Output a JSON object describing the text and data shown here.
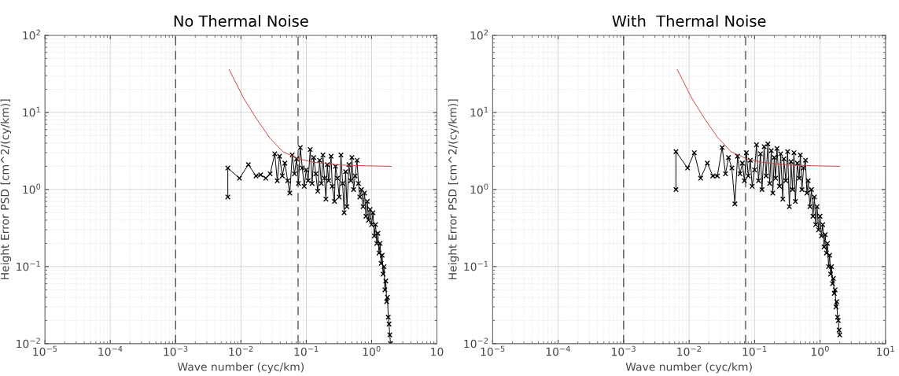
{
  "chart_data": [
    {
      "type": "line",
      "title": "No Thermal Noise",
      "xlabel": "Wave number (cyc/km)",
      "ylabel": "Height Error PSD [cm^2/(cy/km)]",
      "log": "xy",
      "grid": true,
      "xlim": [
        1e-05,
        10
      ],
      "ylim": [
        0.01,
        100
      ],
      "xticks": [
        {
          "value": 1e-05,
          "label": "10$^{−5}$"
        },
        {
          "value": 0.0001,
          "label": "10$^{−4}$"
        },
        {
          "value": 0.001,
          "label": "10$^{−3}$"
        },
        {
          "value": 0.01,
          "label": "10$^{−2}$"
        },
        {
          "value": 0.1,
          "label": "10$^{−1}$"
        },
        {
          "value": 1,
          "label": "10$^{0}$"
        },
        10
      ],
      "yticks": [
        {
          "value": 0.01,
          "label": "10$^{−2}$"
        },
        {
          "value": 0.1,
          "label": "10$^{−1}$"
        },
        {
          "value": 1,
          "label": "10$^{0}$"
        },
        {
          "value": 10,
          "label": "10$^{1}$"
        },
        {
          "value": 100,
          "label": "10$^{2}$"
        }
      ],
      "ref_lines": [
        {
          "axis": "x",
          "value": 0.001,
          "color": "#555555",
          "line_style": "dashed"
        },
        {
          "axis": "x",
          "value": 0.075,
          "color": "#555555",
          "line_style": "dashed"
        }
      ],
      "series": [
        {
          "color": "#000000",
          "marker": "cross",
          "x": [
            0.0063,
            0.0063,
            0.0095,
            0.013,
            0.017,
            0.02,
            0.024,
            0.028,
            0.033,
            0.036,
            0.039,
            0.043,
            0.047,
            0.052,
            0.056,
            0.061,
            0.066,
            0.071,
            0.076,
            0.081,
            0.087,
            0.093,
            0.1,
            0.107,
            0.115,
            0.123,
            0.13,
            0.14,
            0.15,
            0.16,
            0.17,
            0.18,
            0.19,
            0.2,
            0.21,
            0.22,
            0.24,
            0.25,
            0.27,
            0.28,
            0.3,
            0.32,
            0.34,
            0.36,
            0.38,
            0.4,
            0.42,
            0.45,
            0.48,
            0.5,
            0.53,
            0.56,
            0.6,
            0.63,
            0.66,
            0.7,
            0.74,
            0.78,
            0.82,
            0.86,
            0.9,
            0.95,
            1.0,
            1.05,
            1.1,
            1.15,
            1.2,
            1.25,
            1.3,
            1.35,
            1.4,
            1.45,
            1.5,
            1.55,
            1.6,
            1.65,
            1.7,
            1.75,
            1.8,
            1.85,
            1.9,
            1.95
          ],
          "values": [
            0.8,
            1.9,
            1.4,
            2.1,
            1.5,
            1.55,
            1.4,
            1.6,
            2.9,
            1.3,
            2.7,
            1.5,
            2.2,
            1.3,
            0.9,
            2.8,
            1.6,
            2.5,
            1.2,
            3.5,
            1.9,
            1.1,
            1.8,
            1.3,
            3.3,
            1.2,
            2.6,
            1.6,
            0.95,
            2.4,
            1.2,
            2.8,
            1.4,
            0.75,
            2.1,
            1.3,
            2.7,
            1.1,
            0.7,
            2.0,
            1.4,
            0.8,
            2.8,
            1.2,
            0.5,
            1.7,
            0.6,
            2.1,
            1.3,
            2.6,
            1.0,
            1.5,
            2.4,
            1.2,
            0.8,
            1.0,
            0.6,
            0.9,
            0.45,
            0.7,
            0.4,
            0.55,
            0.35,
            0.5,
            0.25,
            0.35,
            0.2,
            0.27,
            0.15,
            0.2,
            0.11,
            0.14,
            0.08,
            0.1,
            0.05,
            0.065,
            0.035,
            0.04,
            0.022,
            0.018,
            0.013,
            0.01
          ]
        },
        {
          "color": "#cc4444",
          "marker": "none",
          "x": [
            0.0066,
            0.011,
            0.0174,
            0.0275,
            0.0436,
            0.076,
            0.132,
            0.33,
            0.83,
            2.0
          ],
          "values": [
            36,
            15.3,
            8.2,
            4.7,
            3.1,
            2.5,
            2.25,
            2.08,
            2.03,
            2.0
          ]
        }
      ]
    },
    {
      "type": "line",
      "title": "With  Thermal Noise",
      "xlabel": "Wave number (cyc/km)",
      "ylabel": "Height Error PSD [cm^2/(cy/km)]",
      "log": "xy",
      "grid": true,
      "xlim": [
        1e-05,
        10
      ],
      "ylim": [
        0.01,
        100
      ],
      "xticks": [
        {
          "value": 1e-05,
          "label": "10$^{−5}$"
        },
        {
          "value": 0.0001,
          "label": "10$^{−4}$"
        },
        {
          "value": 0.001,
          "label": "10$^{−3}$"
        },
        {
          "value": 0.01,
          "label": "10$^{−2}$"
        },
        {
          "value": 0.1,
          "label": "10$^{−1}$"
        },
        {
          "value": 1,
          "label": "10$^{0}$"
        },
        {
          "value": 10,
          "label": "10$^{1}$"
        }
      ],
      "yticks": [
        {
          "value": 0.01,
          "label": "10$^{−2}$"
        },
        {
          "value": 0.1,
          "label": "10$^{−1}$"
        },
        {
          "value": 1,
          "label": "10$^{0}$"
        },
        {
          "value": 10,
          "label": "10$^{1}$"
        },
        {
          "value": 100,
          "label": "10$^{2}$"
        }
      ],
      "ref_lines": [
        {
          "axis": "x",
          "value": 0.001,
          "color": "#555555",
          "line_style": "dashed"
        },
        {
          "axis": "x",
          "value": 0.073,
          "color": "#555555",
          "line_style": "dashed"
        }
      ],
      "series": [
        {
          "color": "#000000",
          "marker": "cross",
          "x": [
            0.0063,
            0.0063,
            0.0095,
            0.012,
            0.015,
            0.019,
            0.023,
            0.027,
            0.032,
            0.036,
            0.04,
            0.045,
            0.05,
            0.055,
            0.06,
            0.065,
            0.07,
            0.075,
            0.08,
            0.086,
            0.092,
            0.1,
            0.107,
            0.115,
            0.123,
            0.13,
            0.14,
            0.15,
            0.16,
            0.17,
            0.18,
            0.19,
            0.2,
            0.21,
            0.22,
            0.24,
            0.25,
            0.27,
            0.28,
            0.3,
            0.32,
            0.34,
            0.36,
            0.38,
            0.4,
            0.42,
            0.45,
            0.48,
            0.5,
            0.53,
            0.56,
            0.6,
            0.63,
            0.66,
            0.7,
            0.74,
            0.78,
            0.82,
            0.86,
            0.9,
            0.95,
            1.0,
            1.05,
            1.1,
            1.15,
            1.2,
            1.25,
            1.3,
            1.35,
            1.4,
            1.45,
            1.5,
            1.55,
            1.6,
            1.65,
            1.7,
            1.75,
            1.8,
            1.85,
            1.9,
            1.95,
            2.0
          ],
          "values": [
            1.0,
            3.1,
            1.9,
            3.0,
            1.4,
            2.2,
            1.5,
            1.5,
            3.5,
            1.6,
            2.6,
            1.9,
            0.65,
            2.7,
            1.6,
            2.2,
            1.3,
            3.0,
            1.5,
            2.4,
            1.1,
            1.8,
            3.8,
            1.3,
            2.9,
            1.0,
            3.6,
            1.5,
            3.9,
            1.2,
            3.2,
            0.9,
            2.6,
            1.4,
            3.4,
            1.1,
            2.9,
            0.75,
            2.5,
            1.3,
            3.1,
            0.6,
            2.3,
            1.0,
            3.0,
            0.7,
            2.2,
            1.4,
            2.8,
            1.0,
            1.9,
            2.4,
            0.9,
            1.3,
            0.6,
            1.0,
            0.45,
            0.8,
            0.35,
            0.6,
            0.3,
            0.45,
            0.25,
            0.35,
            0.18,
            0.26,
            0.15,
            0.2,
            0.1,
            0.14,
            0.08,
            0.1,
            0.06,
            0.07,
            0.045,
            0.05,
            0.03,
            0.035,
            0.022,
            0.02,
            0.015,
            0.013
          ]
        },
        {
          "color": "#cc4444",
          "marker": "none",
          "x": [
            0.0066,
            0.011,
            0.0174,
            0.0275,
            0.0436,
            0.076,
            0.132,
            0.33,
            0.83,
            2.0
          ],
          "values": [
            36,
            15.3,
            8.2,
            4.7,
            3.1,
            2.5,
            2.25,
            2.08,
            2.03,
            2.0
          ]
        }
      ]
    }
  ]
}
